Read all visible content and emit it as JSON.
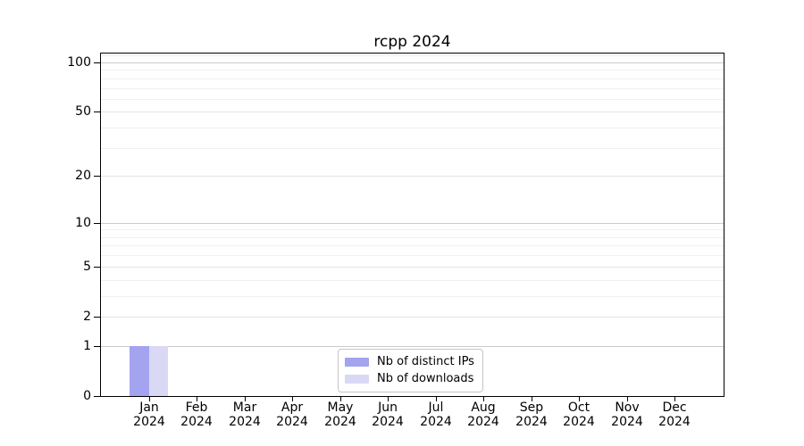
{
  "chart_data": {
    "type": "bar",
    "title": "rcpp 2024",
    "year_label": "2024",
    "categories": [
      "Jan",
      "Feb",
      "Mar",
      "Apr",
      "May",
      "Jun",
      "Jul",
      "Aug",
      "Sep",
      "Oct",
      "Nov",
      "Dec"
    ],
    "series": [
      {
        "name": "Nb of distinct IPs",
        "color": "#a3a3ef",
        "values": [
          1,
          0,
          0,
          0,
          0,
          0,
          0,
          0,
          0,
          0,
          0,
          0
        ]
      },
      {
        "name": "Nb of downloads",
        "color": "#d9d9f6",
        "values": [
          1,
          0,
          0,
          0,
          0,
          0,
          0,
          0,
          0,
          0,
          0,
          0
        ]
      }
    ],
    "xlabel": "",
    "ylabel": "",
    "yscale": "log1p",
    "ylim": [
      0,
      112
    ],
    "y_ticks": [
      0,
      1,
      2,
      5,
      10,
      20,
      50,
      100
    ],
    "y_minor_gridlines": [
      3,
      4,
      6,
      7,
      8,
      9,
      30,
      40,
      60,
      70,
      80,
      90,
      110
    ],
    "grid": true,
    "legend_position": "lower center"
  },
  "colors": {
    "spine": "#000000",
    "grid_decade": "#cbcbcb",
    "grid_mid": "#e4e4e4",
    "grid_minor": "#f1f1f1",
    "background": "#ffffff"
  }
}
